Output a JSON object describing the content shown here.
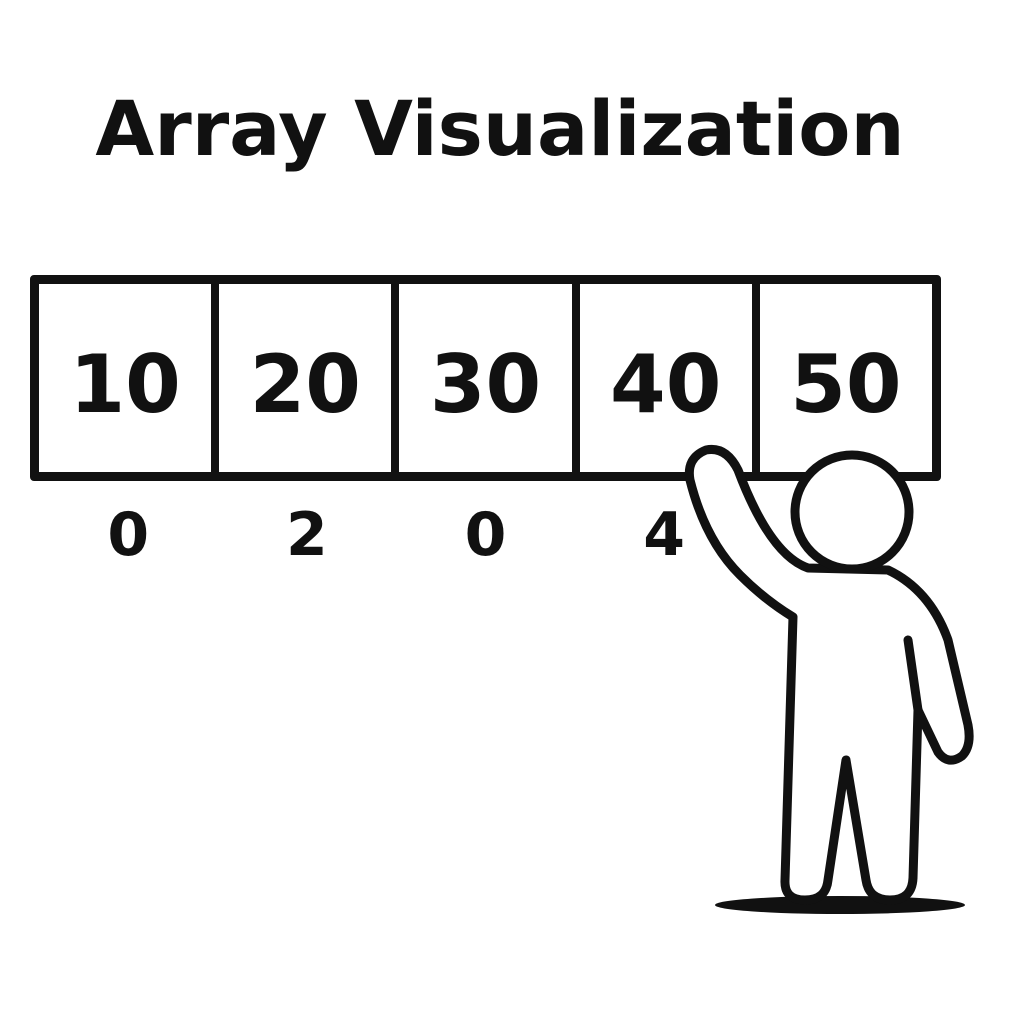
{
  "title": "Array Visualization",
  "array": {
    "values": [
      "10",
      "20",
      "30",
      "40",
      "50"
    ],
    "indices": [
      "0",
      "2",
      "0",
      "4",
      ""
    ]
  },
  "colors": {
    "ink": "#111111",
    "background": "#ffffff"
  },
  "icons": [
    "person-figure-icon"
  ]
}
